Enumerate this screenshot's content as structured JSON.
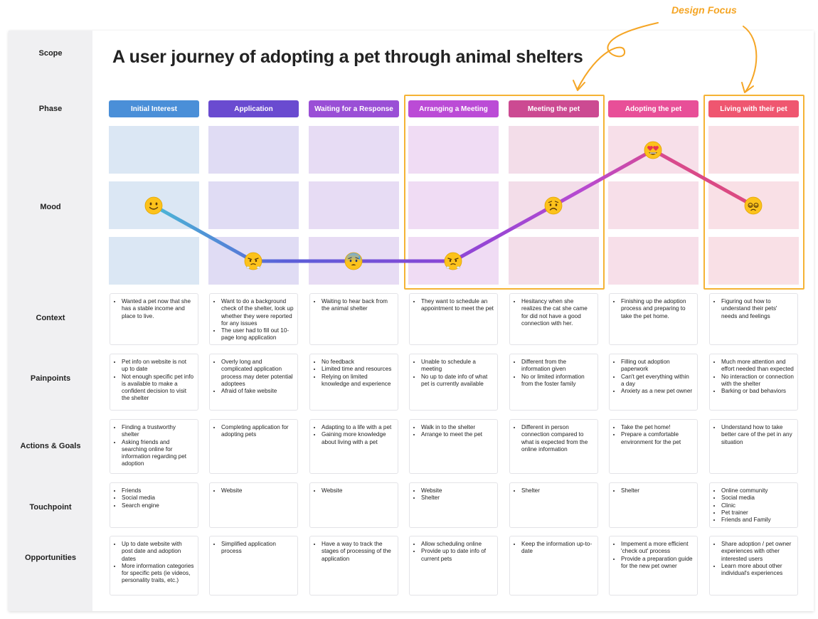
{
  "header": {
    "design_focus": "Design Focus",
    "title": "A user journey of adopting a pet through animal shelters"
  },
  "row_labels": {
    "scope": "Scope",
    "phase": "Phase",
    "mood": "Mood",
    "context": "Context",
    "painpoints": "Painpoints",
    "actions": "Actions & Goals",
    "touchpoint": "Touchpoint",
    "opportunities": "Opportunities"
  },
  "colors": {
    "focus": "#f5b335",
    "phase": [
      "#4a8fd8",
      "#6a4bd0",
      "#9a4fd6",
      "#bb4bd6",
      "#cc4a92",
      "#e84f98",
      "#ef5670"
    ],
    "mood": [
      "#dbe7f4",
      "#e0dcf4",
      "#e7dcf4",
      "#f0dcf4",
      "#f3dde9",
      "#f7dfe9",
      "#f9e0e6"
    ]
  },
  "phases": [
    {
      "label": "Initial Interest",
      "mood_level": 2,
      "mood_icon": "slightly-smiling-face-icon",
      "context": [
        "Wanted a pet now that she has a stable income and place to live."
      ],
      "painpoints": [
        "Pet info on website is not up to date",
        "Not enough specific pet info is available to make a confident decision to visit the shelter"
      ],
      "actions": [
        "Finding a trustworthy shelter",
        "Asking friends and searching online for information regarding pet adoption"
      ],
      "touchpoint": [
        "Friends",
        "Social media",
        "Search engine"
      ],
      "opportunities": [
        "Up to date website with post date and adoption dates",
        "More information categories for specific pets (ie videos, personality traits, etc.)"
      ]
    },
    {
      "label": "Application",
      "mood_level": 1,
      "mood_icon": "face-with-steam-icon",
      "context": [
        "Want to do a background check of the shelter, look up whether they were reported for any issues",
        "The user had to fill out 10-page long application"
      ],
      "painpoints": [
        "Overly long and complicated application process may deter potential adoptees",
        "Afraid of fake website"
      ],
      "actions": [
        "Completing application for adopting pets"
      ],
      "touchpoint": [
        "Website"
      ],
      "opportunities": [
        "Simplified application process"
      ]
    },
    {
      "label": "Waiting for a Response",
      "mood_level": 1,
      "mood_icon": "anxious-face-with-sweat-icon",
      "context": [
        "Waiting to hear back from the animal shelter"
      ],
      "painpoints": [
        "No feedback",
        "Limited time and resources",
        "Relying on limited knowledge and experience"
      ],
      "actions": [
        "Adapting to a life with a pet",
        "Gaining more knowledge about living with a pet"
      ],
      "touchpoint": [
        "Website"
      ],
      "opportunities": [
        "Have a way to track the stages of processing of the application"
      ]
    },
    {
      "label": "Arranging a Meeting",
      "mood_level": 1,
      "mood_icon": "face-with-steam-icon",
      "context": [
        "They want to schedule an appointment to meet the pet"
      ],
      "painpoints": [
        "Unable to schedule a meeting",
        "No up to date info of what pet is currently available"
      ],
      "actions": [
        "Walk in to the shelter",
        "Arrange to meet the pet"
      ],
      "touchpoint": [
        "Website",
        "Shelter"
      ],
      "opportunities": [
        "Allow scheduling online",
        "Provide up to date info of current pets"
      ]
    },
    {
      "label": "Meeting the pet",
      "mood_level": 2,
      "mood_icon": "worried-face-icon",
      "context": [
        "Hesitancy when she realizes the cat she came for did not have a good connection with her."
      ],
      "painpoints": [
        "Different from the information given",
        "No or limited information from the foster family"
      ],
      "actions": [
        "Different in person connection compared to what is expected from the online information"
      ],
      "touchpoint": [
        "Shelter"
      ],
      "opportunities": [
        "Keep the information up-to-date"
      ]
    },
    {
      "label": "Adopting the pet",
      "mood_level": 3,
      "mood_icon": "heart-eyes-face-icon",
      "context": [
        "Finishing up the adoption process and preparing to take the pet home."
      ],
      "painpoints": [
        "Filling out adoption paperwork",
        "Can't get everything within a day",
        "Anxiety as a new pet owner"
      ],
      "actions": [
        "Take the pet home!",
        "Prepare a comfortable environment for the pet"
      ],
      "touchpoint": [
        "Shelter"
      ],
      "opportunities": [
        "Impement a more efficient 'check out' process",
        "Provide a preparation guide for the new pet owner"
      ]
    },
    {
      "label": "Living with their pet",
      "mood_level": 2,
      "mood_icon": "dizzy-face-icon",
      "context": [
        "Figuring out how to understand their pets' needs and feelings"
      ],
      "painpoints": [
        "Much more attention and effort needed than expected",
        "No interaction or connection with the shelter",
        "Barking or bad behaviors"
      ],
      "actions": [
        "Understand how to take better care of the pet in any situation"
      ],
      "touchpoint": [
        "Online community",
        "Social media",
        "Clinic",
        "Pet trainer",
        "Friends and Family"
      ],
      "opportunities": [
        "Share adoption / pet owner experiences with other interested users",
        "Learn more about other individual's experiences"
      ]
    }
  ]
}
